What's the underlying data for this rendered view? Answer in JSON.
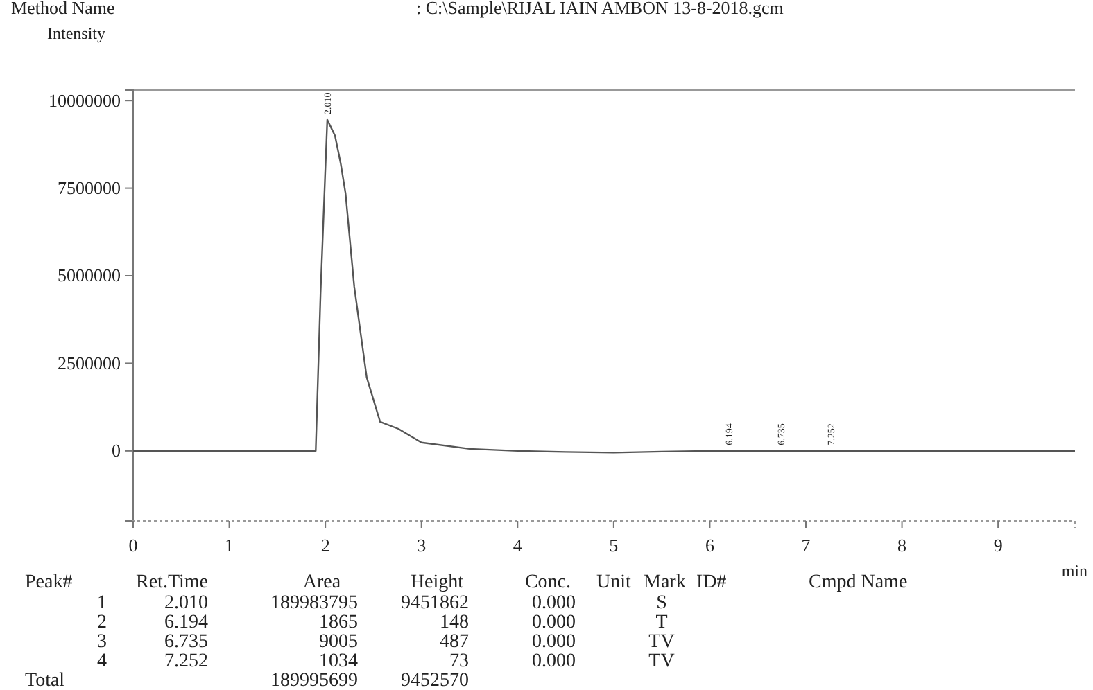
{
  "chart_data": {
    "type": "line",
    "title": "Method Name",
    "subtitle": ": C:\\Sample\\RIJAL IAIN AMBON 13-8-2018.gcm",
    "ylabel": "Intensity",
    "xlabel": "min",
    "x": [
      0,
      1,
      1.9,
      1.95,
      2.02,
      2.1,
      2.16,
      2.21,
      2.3,
      2.43,
      2.57,
      2.76,
      3.0,
      3.5,
      4.0,
      4.5,
      5.0,
      5.5,
      6.0,
      6.194,
      6.4,
      6.735,
      7.0,
      7.252,
      7.5,
      9.8
    ],
    "series": [
      {
        "color": "#555555",
        "values": [
          0,
          0,
          0,
          4500000,
          9451862,
          9000000,
          8200000,
          7350000,
          4700000,
          2100000,
          830000,
          630000,
          240000,
          60000,
          0,
          -30000,
          -50000,
          -20000,
          0,
          148,
          0,
          487,
          0,
          73,
          0,
          0
        ]
      }
    ],
    "xlim": [
      0,
      9.8
    ],
    "xticks": [
      0,
      1,
      2,
      3,
      4,
      5,
      6,
      7,
      8,
      9
    ],
    "ylim": [
      -2000000,
      10300000
    ],
    "yticks": [
      0,
      2500000,
      5000000,
      7500000,
      10000000
    ],
    "grid": false,
    "marker": "none",
    "line_style": "solid",
    "annotations": [
      {
        "text": "2.010",
        "x": 2.01,
        "y": 9451862
      },
      {
        "text": "6.194",
        "x": 6.194,
        "y": 148
      },
      {
        "text": "6.735",
        "x": 6.735,
        "y": 487
      },
      {
        "text": "7.252",
        "x": 7.252,
        "y": 73
      },
      "Peak#  Ret.Time  Area  Height  Conc.  Unit  Mark  ID#  Cmpd Name",
      "1  2.010  189983795  9451862  0.000  S",
      "2  6.194  1865  148  0.000  T",
      "3  6.735  9005  487  0.000  TV",
      "4  7.252  1034  73  0.000  TV",
      "Total  189995699  9452570"
    ]
  }
}
